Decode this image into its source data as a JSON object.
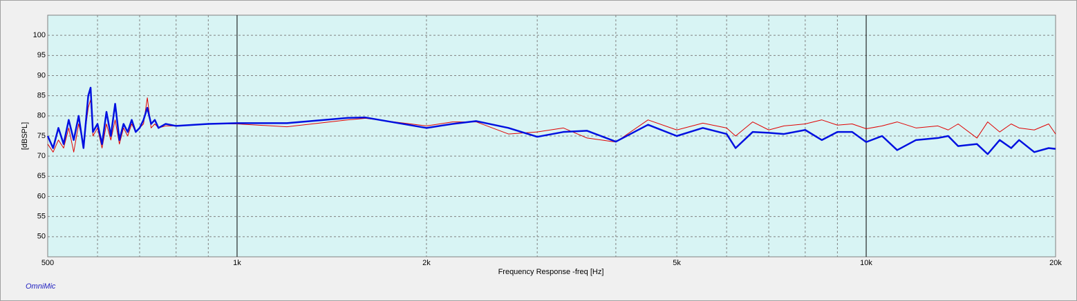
{
  "chart_data": {
    "type": "line",
    "xlabel": "Frequency Response -freq [Hz]",
    "ylabel": "[dBSPL]",
    "watermark": "OmniMic",
    "xscale": "log",
    "grid": true,
    "xlim": [
      500,
      20000
    ],
    "ylim": [
      45,
      105
    ],
    "xticks": [
      500,
      {
        "value": 1000,
        "label": "1k"
      },
      {
        "value": 2000,
        "label": "2k"
      },
      {
        "value": 5000,
        "label": "5k"
      },
      {
        "value": 10000,
        "label": "10k"
      },
      {
        "value": 20000,
        "label": "20k"
      }
    ],
    "xminor": [
      600,
      700,
      800,
      900,
      3000,
      4000,
      6000,
      7000,
      8000,
      9000
    ],
    "yticks": [
      50,
      55,
      60,
      65,
      70,
      75,
      80,
      85,
      90,
      95,
      100
    ],
    "x": [
      500,
      510,
      520,
      530,
      540,
      550,
      560,
      570,
      580,
      585,
      590,
      600,
      610,
      620,
      630,
      640,
      650,
      660,
      670,
      680,
      690,
      700,
      710,
      720,
      730,
      740,
      750,
      770,
      800,
      900,
      1000,
      1200,
      1500,
      1600,
      2000,
      2200,
      2400,
      2700,
      3000,
      3300,
      3600,
      4000,
      4500,
      5000,
      5500,
      6000,
      6200,
      6600,
      7000,
      7400,
      8000,
      8500,
      9000,
      9500,
      10000,
      10600,
      11200,
      12000,
      13000,
      13500,
      14000,
      15000,
      15600,
      16300,
      17000,
      17500,
      18500,
      19500,
      20000
    ],
    "series": [
      {
        "color": "#e00000",
        "width": 1,
        "values": [
          73,
          71,
          74,
          72,
          77,
          71,
          78,
          73,
          82,
          84,
          75,
          77,
          72,
          78,
          74,
          79,
          73,
          77,
          75,
          78,
          76,
          77,
          78,
          84.5,
          77,
          78,
          77,
          77.5,
          77.5,
          78,
          78,
          77.3,
          79,
          79.4,
          77.5,
          78.5,
          78.5,
          75.5,
          76,
          77,
          74.5,
          73.5,
          79,
          76.5,
          78.2,
          77,
          75,
          78.5,
          76.5,
          77.5,
          78,
          79,
          77.7,
          78,
          76.8,
          77.5,
          78.5,
          77,
          77.5,
          76.5,
          78,
          74.5,
          78.5,
          76,
          78,
          77,
          76.5,
          78,
          75.5
        ]
      },
      {
        "color": "#0010e0",
        "width": 2.5,
        "values": [
          75,
          72,
          77,
          73,
          79,
          74,
          80,
          72,
          85,
          87,
          76,
          78,
          73,
          81,
          75,
          83,
          74,
          78,
          76,
          79,
          76,
          77,
          79,
          82,
          78,
          79,
          77,
          78,
          77.5,
          78,
          78.2,
          78.2,
          79.5,
          79.6,
          77,
          78,
          78.7,
          77,
          74.8,
          76,
          76.3,
          73.6,
          77.8,
          75,
          77,
          75.5,
          72,
          76,
          75.8,
          75.5,
          76.5,
          74,
          76,
          76,
          73.5,
          75,
          71.5,
          74,
          74.5,
          75,
          72.5,
          73,
          70.5,
          74,
          72,
          74,
          71,
          72,
          71.8
        ]
      }
    ]
  }
}
